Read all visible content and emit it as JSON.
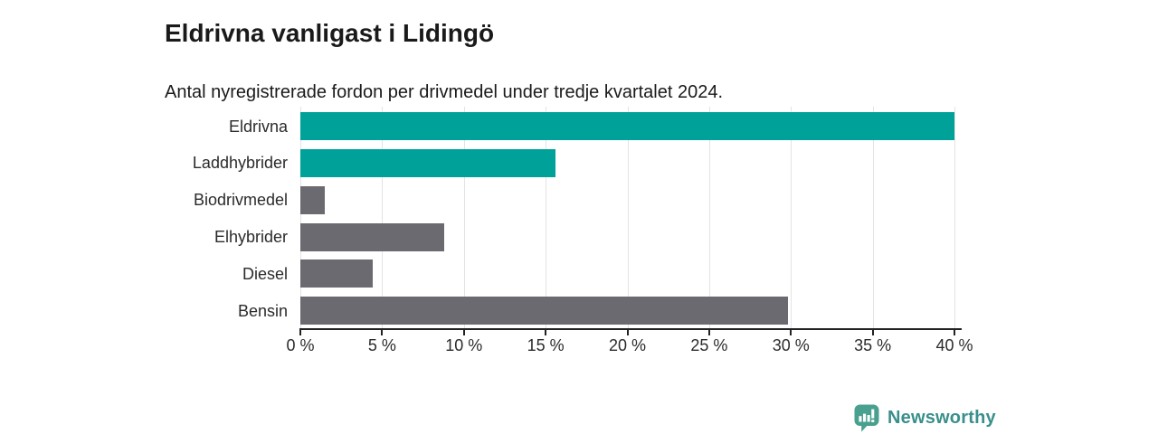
{
  "header": {
    "title": "Eldrivna vanligast i Lidingö",
    "subtitle": "Antal nyregistrerade fordon per drivmedel under tredje kvartalet 2024."
  },
  "chart_data": {
    "type": "bar",
    "orientation": "horizontal",
    "title": "Eldrivna vanligast i Lidingö",
    "subtitle": "Antal nyregistrerade fordon per drivmedel under tredje kvartalet 2024.",
    "categories": [
      "Eldrivna",
      "Laddhybrider",
      "Biodrivmedel",
      "Elhybrider",
      "Diesel",
      "Bensin"
    ],
    "values": [
      40,
      15.6,
      1.5,
      8.8,
      4.4,
      29.8
    ],
    "unit": "%",
    "xlim": [
      0,
      40
    ],
    "x_ticks": [
      0,
      5,
      10,
      15,
      20,
      25,
      30,
      35,
      40
    ],
    "x_tick_labels": [
      "0 %",
      "5 %",
      "10 %",
      "15 %",
      "20 %",
      "25 %",
      "30 %",
      "35 %",
      "40 %"
    ],
    "bar_color_keys": [
      "teal",
      "teal",
      "gray",
      "gray",
      "gray",
      "gray"
    ],
    "grid": "vertical-on",
    "legend": "none"
  },
  "colors": {
    "teal": "#00a199",
    "gray": "#6b6a70",
    "grid": "#e3e3e3",
    "axis": "#222222",
    "text": "#1a1a1a",
    "brand_icon": "#4aa08f",
    "brand_text": "#398f8b"
  },
  "footer": {
    "brand": "Newsworthy"
  }
}
